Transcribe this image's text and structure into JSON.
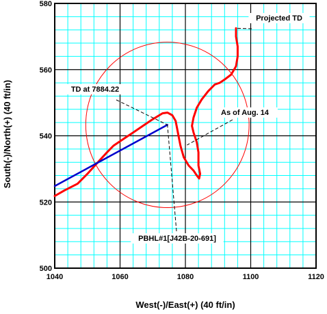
{
  "chart_data": {
    "type": "line",
    "xlabel": "West(-)/East(+) (40 ft/in)",
    "ylabel": "South(-)/North(+) (40 ft/in)",
    "xlim": [
      1040,
      1120
    ],
    "ylim": [
      500,
      580
    ],
    "major_step": 20,
    "minor_step": 4,
    "grid": true,
    "x_ticks": [
      "1040",
      "1060",
      "1080",
      "1100",
      "1120"
    ],
    "y_ticks": [
      "500",
      "520",
      "540",
      "560",
      "580"
    ],
    "colors": {
      "grid_minor": "#00ffff",
      "grid_major": "#000000",
      "well_path": "#ff0000",
      "plan_line": "#0000cc",
      "target_circle": "#ff0000",
      "leader": "#000000"
    },
    "series": [
      {
        "role": "actual-well-path",
        "color": "#ff0000",
        "x": [
          1040,
          1043,
          1047,
          1050,
          1053,
          1056,
          1058,
          1061,
          1064,
          1067,
          1070,
          1073,
          1074.5,
          1076,
          1077,
          1077.5,
          1078,
          1078.5,
          1079.5,
          1081,
          1082.5,
          1083.5,
          1084.2,
          1084.5,
          1084,
          1084,
          1083.5,
          1082.5,
          1082,
          1082.5,
          1083.5,
          1085,
          1087,
          1089,
          1090.5,
          1092,
          1094,
          1095.5,
          1096,
          1096,
          1095.5,
          1095.5
        ],
        "y": [
          521.8,
          523.5,
          525.5,
          528.5,
          531.8,
          535,
          537,
          539,
          541,
          543,
          545,
          546.8,
          547,
          546.2,
          544.5,
          542,
          539.5,
          537,
          533.5,
          531,
          529.5,
          528,
          527.1,
          528.5,
          531,
          535,
          538,
          541,
          543,
          545.5,
          548.5,
          551,
          553.5,
          555.5,
          556,
          557,
          558.5,
          561,
          564,
          567,
          570,
          572.5
        ]
      },
      {
        "role": "planned-line",
        "color": "#0000cc",
        "x": [
          1040,
          1074.5
        ],
        "y": [
          524.8,
          543.3
        ]
      }
    ],
    "target_circle": {
      "center_x": 1074.5,
      "center_y": 543.3,
      "radius": 25,
      "color": "#ff0000"
    },
    "annotations": [
      {
        "text": "Projected TD",
        "point_x": 1095.5,
        "point_y": 572.5
      },
      {
        "text": "TD at 7884.22",
        "point_x": 1074.5,
        "point_y": 543.3
      },
      {
        "text": "As of Aug. 14",
        "point_x": 1080.5,
        "point_y": 537.2
      },
      {
        "text": "PBHL#1[J42B-20-691]",
        "point_x": 1074.5,
        "point_y": 543.3
      }
    ]
  }
}
